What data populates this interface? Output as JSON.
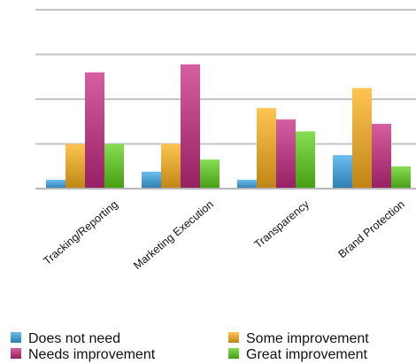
{
  "chart_data": {
    "type": "bar",
    "title": "",
    "xlabel": "",
    "ylabel": "",
    "categories": [
      "Tracking/Reporting",
      "Marketing Execution",
      "Transparency",
      "Brand Protection"
    ],
    "ylim": [
      0,
      4
    ],
    "y_gridlines": [
      1,
      2,
      3,
      4
    ],
    "y_tick_labels_shown": false,
    "grid": true,
    "legend_position": "bottom",
    "series": [
      {
        "name": "Does not need",
        "color": "#3aa8ea",
        "values": [
          0.2,
          0.38,
          0.2,
          0.75
        ]
      },
      {
        "name": "Some improvement",
        "color": "#ffb11a",
        "values": [
          1.0,
          1.0,
          1.8,
          2.25
        ]
      },
      {
        "name": "Needs improvement",
        "color": "#c82a83",
        "values": [
          2.6,
          2.78,
          1.55,
          1.45
        ]
      },
      {
        "name": "Great improvement",
        "color": "#5dd21a",
        "values": [
          1.0,
          0.65,
          1.28,
          0.5
        ]
      }
    ]
  }
}
